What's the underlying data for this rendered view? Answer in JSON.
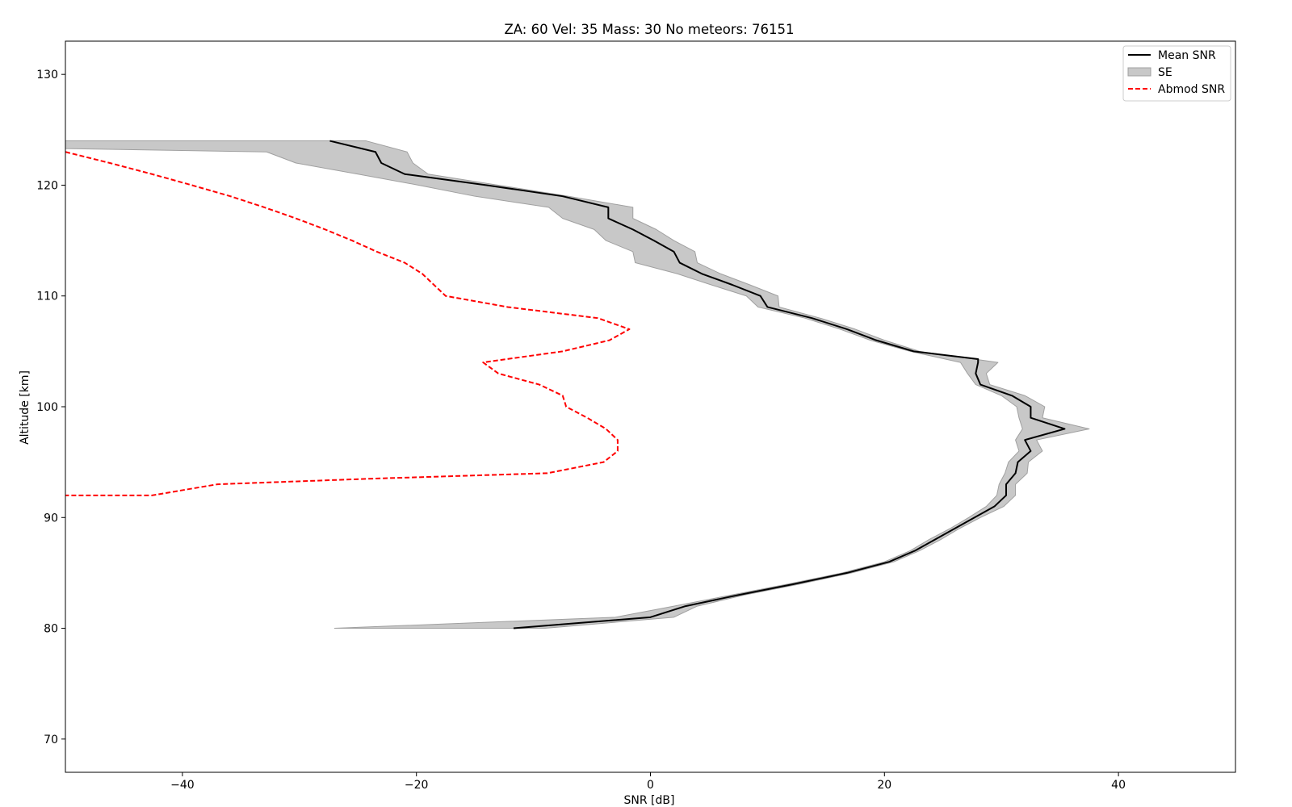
{
  "chart_data": {
    "type": "line",
    "title": "ZA: 60 Vel: 35 Mass: 30 No meteors: 76151",
    "xlabel": "SNR [dB]",
    "ylabel": "Altitude [km]",
    "xlim": [
      -50,
      50
    ],
    "ylim": [
      67,
      133
    ],
    "xticks": [
      -40,
      -20,
      0,
      20,
      40
    ],
    "yticks": [
      70,
      80,
      90,
      100,
      110,
      120,
      130
    ],
    "xtick_labels": [
      "−40",
      "−20",
      "0",
      "20",
      "40"
    ],
    "ytick_labels": [
      "70",
      "80",
      "90",
      "100",
      "110",
      "120",
      "130"
    ],
    "grid": false,
    "legend_position": "top-right",
    "colors": {
      "mean": "#000000",
      "se_fill": "#c8c8c8",
      "se_edge": "#a0a0a0",
      "abmod": "#ff0000"
    },
    "series": [
      {
        "name": "Mean SNR",
        "style": "solid",
        "points": [
          [
            -27.4,
            124
          ],
          [
            -23.5,
            123
          ],
          [
            -23.0,
            122
          ],
          [
            -21.0,
            121
          ],
          [
            -14.0,
            120
          ],
          [
            -7.5,
            119
          ],
          [
            -3.6,
            118
          ],
          [
            -3.6,
            117
          ],
          [
            -1.5,
            116
          ],
          [
            0.3,
            115
          ],
          [
            2.0,
            114
          ],
          [
            2.5,
            113
          ],
          [
            4.4,
            112
          ],
          [
            7.0,
            111
          ],
          [
            9.4,
            110
          ],
          [
            10.0,
            109
          ],
          [
            13.8,
            108
          ],
          [
            16.8,
            107
          ],
          [
            19.3,
            106
          ],
          [
            22.5,
            105
          ],
          [
            28.0,
            104.3
          ],
          [
            28.0,
            104
          ],
          [
            27.8,
            103
          ],
          [
            28.2,
            102
          ],
          [
            30.9,
            101
          ],
          [
            32.5,
            100
          ],
          [
            32.5,
            99
          ],
          [
            35.4,
            98
          ],
          [
            32.0,
            97
          ],
          [
            32.5,
            96
          ],
          [
            31.4,
            95
          ],
          [
            31.2,
            94
          ],
          [
            30.4,
            93
          ],
          [
            30.4,
            92
          ],
          [
            29.4,
            91
          ],
          [
            27.7,
            90
          ],
          [
            26.0,
            89
          ],
          [
            24.3,
            88
          ],
          [
            22.6,
            87
          ],
          [
            20.4,
            86
          ],
          [
            16.8,
            85
          ],
          [
            12.3,
            84
          ],
          [
            7.5,
            83
          ],
          [
            3.0,
            82
          ],
          [
            0.0,
            81
          ],
          [
            -11.7,
            80
          ]
        ]
      },
      {
        "name": "SE",
        "style": "band",
        "upper": [
          [
            -24.3,
            124
          ],
          [
            -20.8,
            123
          ],
          [
            -20.3,
            122
          ],
          [
            -19.0,
            121
          ],
          [
            -13.0,
            120
          ],
          [
            -7.0,
            119
          ],
          [
            -1.5,
            118
          ],
          [
            -1.5,
            117
          ],
          [
            0.5,
            116
          ],
          [
            2.0,
            115
          ],
          [
            3.8,
            114
          ],
          [
            4.0,
            113
          ],
          [
            6.0,
            112
          ],
          [
            8.5,
            111
          ],
          [
            10.9,
            110
          ],
          [
            11.0,
            109
          ],
          [
            14.5,
            108
          ],
          [
            17.5,
            107
          ],
          [
            20.0,
            106
          ],
          [
            23.0,
            105
          ],
          [
            29.7,
            104
          ],
          [
            28.7,
            103
          ],
          [
            29.0,
            102
          ],
          [
            32.0,
            101
          ],
          [
            33.7,
            100
          ],
          [
            33.5,
            99
          ],
          [
            37.5,
            98
          ],
          [
            33.0,
            97
          ],
          [
            33.5,
            96
          ],
          [
            32.3,
            95
          ],
          [
            32.2,
            94
          ],
          [
            31.2,
            93
          ],
          [
            31.2,
            92
          ],
          [
            30.2,
            91
          ],
          [
            28.2,
            90
          ],
          [
            26.4,
            89
          ],
          [
            24.8,
            88
          ],
          [
            23.0,
            87
          ],
          [
            20.8,
            86
          ],
          [
            17.2,
            85
          ],
          [
            12.8,
            84
          ],
          [
            8.0,
            83
          ],
          [
            4.0,
            82
          ],
          [
            2.0,
            81
          ],
          [
            -9.0,
            80
          ]
        ],
        "lower": [
          [
            -50,
            124
          ],
          [
            -50,
            123.3
          ],
          [
            -32.8,
            123
          ],
          [
            -30.3,
            122
          ],
          [
            -25.0,
            121
          ],
          [
            -19.8,
            120
          ],
          [
            -15.0,
            119
          ],
          [
            -8.7,
            118
          ],
          [
            -7.5,
            117
          ],
          [
            -4.8,
            116
          ],
          [
            -3.8,
            115
          ],
          [
            -1.5,
            114
          ],
          [
            -1.3,
            113
          ],
          [
            2.3,
            112
          ],
          [
            5.2,
            111
          ],
          [
            8.2,
            110
          ],
          [
            9.2,
            109
          ],
          [
            13.2,
            108
          ],
          [
            16.2,
            107
          ],
          [
            18.8,
            106
          ],
          [
            22.2,
            105
          ],
          [
            26.5,
            104
          ],
          [
            27.1,
            103
          ],
          [
            27.8,
            102
          ],
          [
            30.0,
            101
          ],
          [
            31.3,
            100
          ],
          [
            31.5,
            99
          ],
          [
            31.8,
            98
          ],
          [
            31.2,
            97
          ],
          [
            31.5,
            96
          ],
          [
            30.6,
            95
          ],
          [
            30.3,
            94
          ],
          [
            29.8,
            93
          ],
          [
            29.6,
            92
          ],
          [
            28.7,
            91
          ],
          [
            27.2,
            90
          ],
          [
            25.6,
            89
          ],
          [
            23.8,
            88
          ],
          [
            22.2,
            87
          ],
          [
            20.0,
            86
          ],
          [
            16.4,
            85
          ],
          [
            11.8,
            84
          ],
          [
            6.9,
            83
          ],
          [
            2.0,
            82
          ],
          [
            -3.0,
            81
          ],
          [
            -27.0,
            80
          ]
        ]
      },
      {
        "name": "Abmod SNR",
        "style": "dashed",
        "points": [
          [
            -50,
            123
          ],
          [
            -46.2,
            122
          ],
          [
            -42.6,
            121
          ],
          [
            -39.2,
            120
          ],
          [
            -35.9,
            119
          ],
          [
            -33.0,
            118
          ],
          [
            -30.3,
            117
          ],
          [
            -27.8,
            116
          ],
          [
            -25.5,
            115
          ],
          [
            -23.4,
            114
          ],
          [
            -21.0,
            113
          ],
          [
            -19.5,
            112
          ],
          [
            -18.5,
            111
          ],
          [
            -17.5,
            110
          ],
          [
            -12.2,
            109
          ],
          [
            -4.5,
            108
          ],
          [
            -1.8,
            107
          ],
          [
            -3.5,
            106
          ],
          [
            -7.5,
            105
          ],
          [
            -14.3,
            104
          ],
          [
            -13.0,
            103
          ],
          [
            -9.5,
            102
          ],
          [
            -7.5,
            101
          ],
          [
            -7.2,
            100
          ],
          [
            -5.4,
            99
          ],
          [
            -3.8,
            98
          ],
          [
            -2.8,
            97
          ],
          [
            -2.8,
            96
          ],
          [
            -4.0,
            95
          ],
          [
            -8.8,
            94
          ],
          [
            -24.0,
            93.5
          ],
          [
            -37.0,
            93
          ],
          [
            -42.6,
            92
          ],
          [
            -50,
            92
          ]
        ]
      }
    ]
  }
}
